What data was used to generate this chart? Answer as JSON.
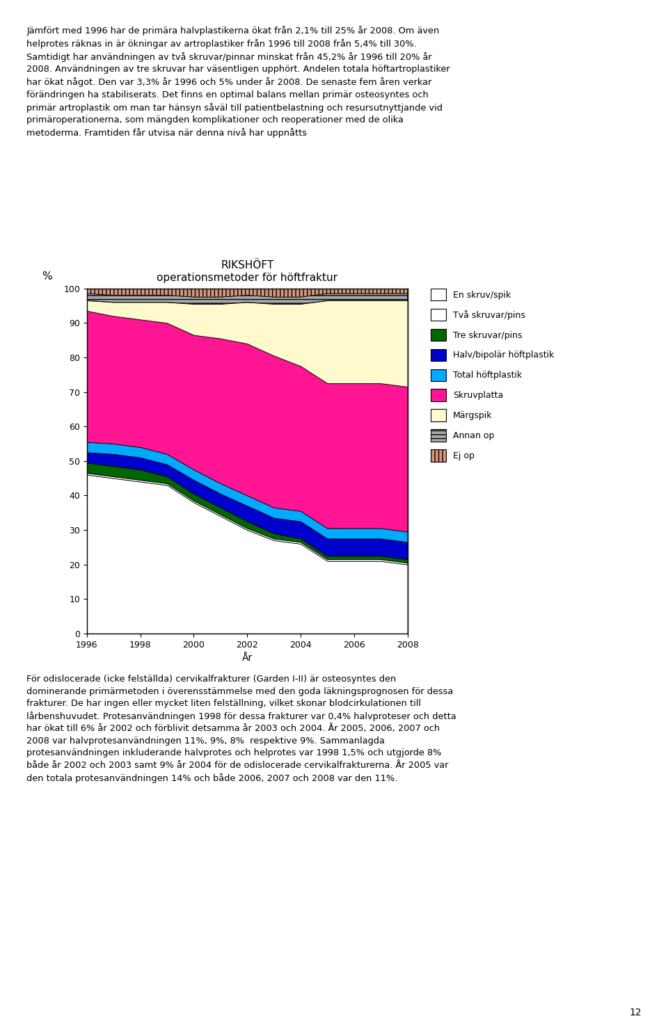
{
  "title_line1": "RIKSHÖFT",
  "title_line2": "operationsmetoder för höftfraktur",
  "xlabel": "År",
  "ylabel": "%",
  "years": [
    1996,
    1997,
    1998,
    1999,
    2000,
    2001,
    2002,
    2003,
    2004,
    2005,
    2006,
    2007,
    2008
  ],
  "series_order": [
    "En skruv/spik",
    "Två skruvar/pins",
    "Tre skruvar/pins",
    "Halv/bipolär höftplastik",
    "Total höftplastik",
    "Skruvplatta",
    "Märgspik",
    "Annan op",
    "Ej op"
  ],
  "series": {
    "En skruv/spik": [
      46,
      45,
      44,
      43,
      38,
      34,
      30,
      27,
      26,
      21,
      21,
      21,
      20
    ],
    "Två skruvar/pins": [
      0.5,
      0.5,
      0.5,
      0.5,
      0.5,
      0.5,
      0.5,
      0.5,
      0.5,
      0.5,
      0.5,
      0.5,
      0.5
    ],
    "Tre skruvar/pins": [
      3,
      3,
      3,
      2,
      2,
      2,
      2,
      1.5,
      1,
      1,
      1,
      1,
      1
    ],
    "Halv/bipolär höftplastik": [
      3,
      3.5,
      3.5,
      3.5,
      4,
      4,
      4.5,
      4.5,
      5,
      5,
      5,
      5,
      5
    ],
    "Total höftplastik": [
      3,
      3,
      3,
      3,
      3,
      3,
      3,
      3,
      3,
      3,
      3,
      3,
      3
    ],
    "Skruvplatta": [
      38,
      37,
      37,
      38,
      39,
      42,
      44,
      44,
      42,
      42,
      42,
      42,
      42
    ],
    "Märgspik": [
      3,
      4,
      5,
      6,
      9,
      10,
      12,
      15,
      18,
      24,
      24,
      24,
      25
    ],
    "Annan op": [
      2,
      2,
      2,
      2,
      2,
      2,
      2,
      2,
      2,
      2,
      2,
      2,
      2
    ],
    "Ej op": [
      1.5,
      2,
      2,
      2,
      2.5,
      2.5,
      2,
      2.5,
      2.5,
      1.5,
      1.5,
      1.5,
      1.5
    ]
  },
  "colors": {
    "En skruv/spik": "#ffffff",
    "Dois skruvar/pins": "#ffffff",
    "Två skruvar/pins": "#ffffff",
    "Tre skruvar/pins": "#006600",
    "Halv/bipolär höftplastik": "#0000cc",
    "Total höftplastik": "#00aaff",
    "Skruvplatta": "#ff1493",
    "Märgspik": "#fffacd",
    "Annan op": "#aaaaaa",
    "Ej op": "#d4967a"
  },
  "hatch": {
    "En skruv/spik": "",
    "Två skruvar/pins": "",
    "Tre skruvar/pins": "",
    "Halv/bipolär höftplastik": "",
    "Total höftplastik": "",
    "Skruvplatta": "",
    "Märgspik": "",
    "Annan op": "---",
    "Ej op": "|||"
  },
  "ylim": [
    0,
    100
  ],
  "yticks": [
    0,
    10,
    20,
    30,
    40,
    50,
    60,
    70,
    80,
    90,
    100
  ],
  "background_color": "#ffffff",
  "top_text": "Jämfört med 1996 har de primära halvplastikerna ökat från 2,1% till 25% år 2008. Om även\nhelprotes räknas in är ökningar av artroplastiker från 1996 till 2008 från 5,4% till 30%.\nSamtidigt har användningen av två skruvar/pinnar minskat från 45,2% år 1996 till 20% år\n2008. Användningen av tre skruvar har väsentligen upphört. Andelen totala höftartroplastiker\nhar ökat något. Den var 3,3% år 1996 och 5% under år 2008. De senaste fem åren verkar\nförändringen ha stabiliserats. Det finns en optimal balans mellan primär osteosyntes och\nprimär artroplastik om man tar hänsyn såväl till patientbelastning och resursutnyttjande vid\nprimäroperationerna, som mängden komplikationer och reoperationer med de olika\nmetoderma. Framtiden får utvisa när denna nivå har uppnåtts",
  "bottom_text": "För odislocerade (icke felställda) cervikalfrakturer (Garden I-II) är osteosyntes den\ndominerande primärmetoden i överensstämmelse med den goda läkningsprognosen för dessa\nfrakturer. De har ingen eller mycket liten felställning, vilket skonar blodcirkulationen till\nlårbenshuvudet. Protesanvändningen 1998 för dessa frakturer var 0,4% halvproteser och detta\nhar ökat till 6% år 2002 och förblivit detsamma år 2003 och 2004. År 2005, 2006, 2007 och\n2008 var halvprotesanvändningen 11%, 9%, 8%  respektive 9%. Sammanlagda\nprotesanvändningen inkluderande halvprotes och helprotes var 1998 1,5% och utgjorde 8%\nbåde år 2002 och 2003 samt 9% år 2004 för de odislocerade cervikalfrakturerna. År 2005 var\nden totala protesanvändningen 14% och både 2006, 2007 och 2008 var den 11%.",
  "page_number": "12"
}
